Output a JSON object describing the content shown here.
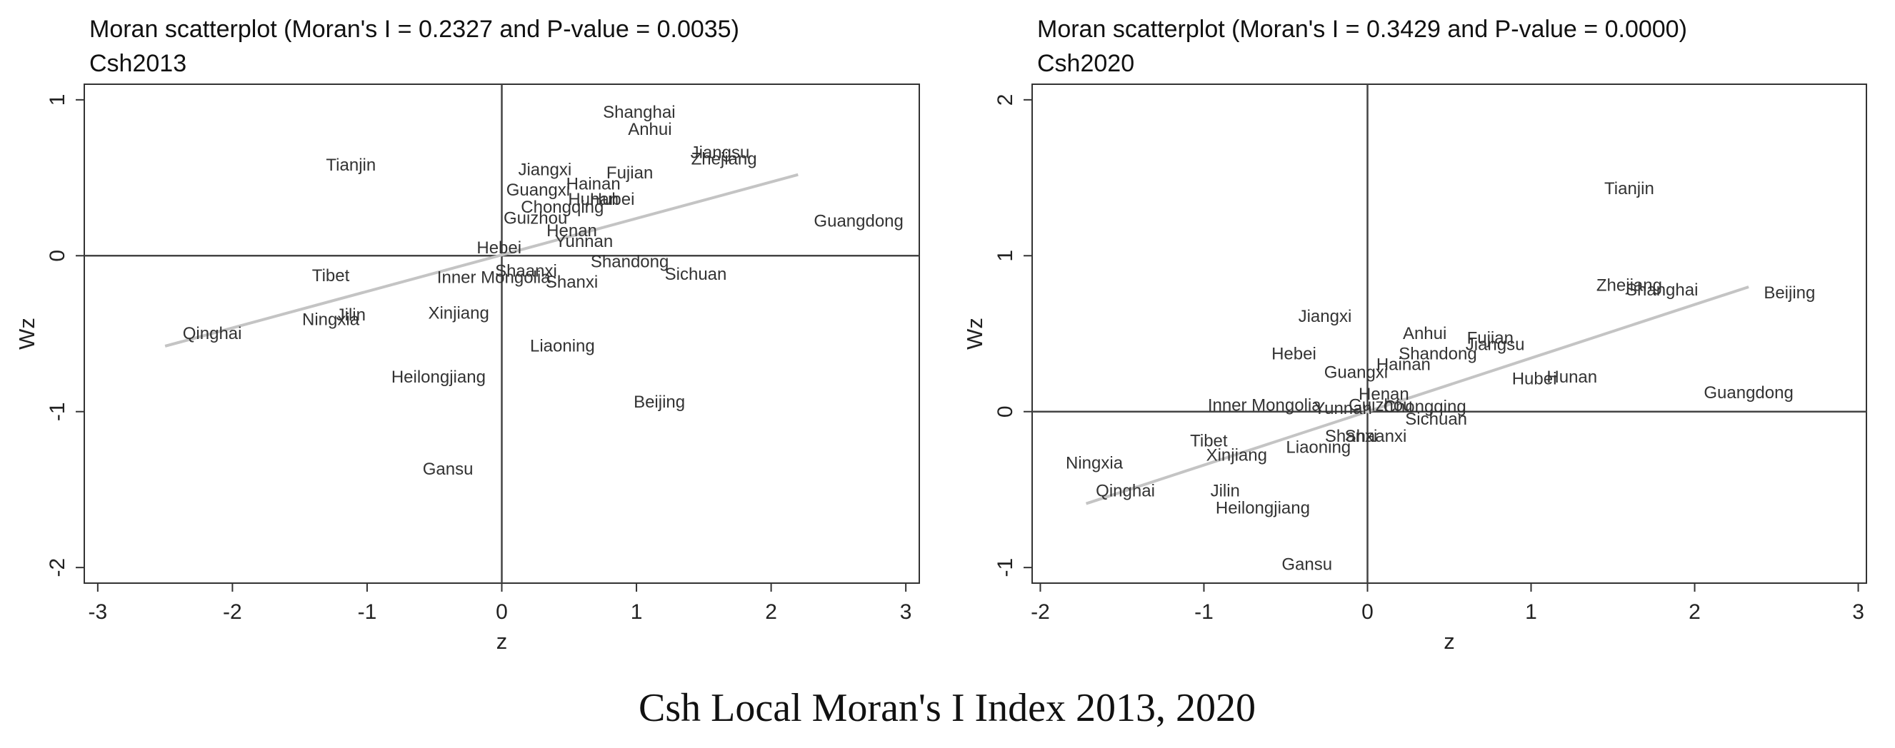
{
  "caption": "Csh Local Moran's I Index 2013, 2020",
  "chart_data": [
    {
      "type": "scatter",
      "title": "Moran scatterplot (Moran's I = 0.2327 and P-value = 0.0035)",
      "subtitle": "Csh2013",
      "xlabel": "z",
      "ylabel": "Wz",
      "xlim": [
        -3.1,
        3.1
      ],
      "ylim": [
        -2.1,
        1.1
      ],
      "xticks": [
        "-3",
        "-2",
        "-1",
        "0",
        "1",
        "2",
        "3"
      ],
      "yticks": [
        "-2",
        "-1",
        "0",
        "1"
      ],
      "fit_line": {
        "x": [
          -2.5,
          2.2
        ],
        "y": [
          -0.58,
          0.52
        ],
        "slope": 0.2327
      },
      "points": [
        {
          "label": "Shanghai",
          "x": 1.02,
          "y": 0.92
        },
        {
          "label": "Anhui",
          "x": 1.1,
          "y": 0.81
        },
        {
          "label": "Jiangsu",
          "x": 1.62,
          "y": 0.66
        },
        {
          "label": "Zhejiang",
          "x": 1.65,
          "y": 0.62
        },
        {
          "label": "Tianjin",
          "x": -1.12,
          "y": 0.58
        },
        {
          "label": "Jiangxi",
          "x": 0.32,
          "y": 0.55
        },
        {
          "label": "Fujian",
          "x": 0.95,
          "y": 0.53
        },
        {
          "label": "Hainan",
          "x": 0.68,
          "y": 0.46
        },
        {
          "label": "Guangxi",
          "x": 0.27,
          "y": 0.42
        },
        {
          "label": "Hunan",
          "x": 0.68,
          "y": 0.36
        },
        {
          "label": "Hubei",
          "x": 0.82,
          "y": 0.36
        },
        {
          "label": "Chongqing",
          "x": 0.45,
          "y": 0.31
        },
        {
          "label": "Guizhou",
          "x": 0.25,
          "y": 0.24
        },
        {
          "label": "Guangdong",
          "x": 2.65,
          "y": 0.22
        },
        {
          "label": "Henan",
          "x": 0.52,
          "y": 0.16
        },
        {
          "label": "Yunnan",
          "x": 0.61,
          "y": 0.09
        },
        {
          "label": "Hebei",
          "x": -0.02,
          "y": 0.05
        },
        {
          "label": "Shandong",
          "x": 0.95,
          "y": -0.04
        },
        {
          "label": "Shaanxi",
          "x": 0.18,
          "y": -0.1
        },
        {
          "label": "Sichuan",
          "x": 1.44,
          "y": -0.12
        },
        {
          "label": "Tibet",
          "x": -1.27,
          "y": -0.13
        },
        {
          "label": "Inner Mongolia",
          "x": -0.06,
          "y": -0.14
        },
        {
          "label": "Shanxi",
          "x": 0.52,
          "y": -0.17
        },
        {
          "label": "Xinjiang",
          "x": -0.32,
          "y": -0.37
        },
        {
          "label": "Jilin",
          "x": -1.12,
          "y": -0.38
        },
        {
          "label": "Ningxia",
          "x": -1.27,
          "y": -0.41
        },
        {
          "label": "Qinghai",
          "x": -2.15,
          "y": -0.5
        },
        {
          "label": "Liaoning",
          "x": 0.45,
          "y": -0.58
        },
        {
          "label": "Heilongjiang",
          "x": -0.47,
          "y": -0.78
        },
        {
          "label": "Beijing",
          "x": 1.17,
          "y": -0.94
        },
        {
          "label": "Gansu",
          "x": -0.4,
          "y": -1.37
        }
      ]
    },
    {
      "type": "scatter",
      "title": "Moran scatterplot (Moran's I = 0.3429 and P-value = 0.0000)",
      "subtitle": "Csh2020",
      "xlabel": "z",
      "ylabel": "Wz",
      "xlim": [
        -2.05,
        3.05
      ],
      "ylim": [
        -1.1,
        2.1
      ],
      "xticks": [
        "-2",
        "-1",
        "0",
        "1",
        "2",
        "3"
      ],
      "yticks": [
        "-1",
        "0",
        "1",
        "2"
      ],
      "fit_line": {
        "x": [
          -1.72,
          2.33
        ],
        "y": [
          -0.59,
          0.8
        ],
        "slope": 0.3429
      },
      "points": [
        {
          "label": "Tianjin",
          "x": 1.6,
          "y": 1.43
        },
        {
          "label": "Zhejiang",
          "x": 1.6,
          "y": 0.81
        },
        {
          "label": "Shanghai",
          "x": 1.8,
          "y": 0.78
        },
        {
          "label": "Beijing",
          "x": 2.58,
          "y": 0.76
        },
        {
          "label": "Jiangxi",
          "x": -0.26,
          "y": 0.61
        },
        {
          "label": "Anhui",
          "x": 0.35,
          "y": 0.5
        },
        {
          "label": "Fujian",
          "x": 0.75,
          "y": 0.47
        },
        {
          "label": "Jiangsu",
          "x": 0.78,
          "y": 0.43
        },
        {
          "label": "Shandong",
          "x": 0.43,
          "y": 0.37
        },
        {
          "label": "Hebei",
          "x": -0.45,
          "y": 0.37
        },
        {
          "label": "Hainan",
          "x": 0.22,
          "y": 0.3
        },
        {
          "label": "Guangxi",
          "x": -0.07,
          "y": 0.25
        },
        {
          "label": "Hubei",
          "x": 1.02,
          "y": 0.21
        },
        {
          "label": "Hunan",
          "x": 1.25,
          "y": 0.22
        },
        {
          "label": "Guangdong",
          "x": 2.33,
          "y": 0.12
        },
        {
          "label": "Henan",
          "x": 0.1,
          "y": 0.11
        },
        {
          "label": "Inner Mongolia",
          "x": -0.63,
          "y": 0.04
        },
        {
          "label": "Guizhou",
          "x": 0.08,
          "y": 0.04
        },
        {
          "label": "Chongqing",
          "x": 0.35,
          "y": 0.03
        },
        {
          "label": "Yunnan",
          "x": -0.15,
          "y": 0.02
        },
        {
          "label": "Sichuan",
          "x": 0.42,
          "y": -0.05
        },
        {
          "label": "Shanxi",
          "x": -0.1,
          "y": -0.16
        },
        {
          "label": "Shaanxi",
          "x": 0.05,
          "y": -0.16
        },
        {
          "label": "Tibet",
          "x": -0.97,
          "y": -0.19
        },
        {
          "label": "Liaoning",
          "x": -0.3,
          "y": -0.23
        },
        {
          "label": "Xinjiang",
          "x": -0.8,
          "y": -0.28
        },
        {
          "label": "Ningxia",
          "x": -1.67,
          "y": -0.33
        },
        {
          "label": "Qinghai",
          "x": -1.48,
          "y": -0.51
        },
        {
          "label": "Jilin",
          "x": -0.87,
          "y": -0.51
        },
        {
          "label": "Heilongjiang",
          "x": -0.64,
          "y": -0.62
        },
        {
          "label": "Gansu",
          "x": -0.37,
          "y": -0.98
        }
      ]
    }
  ]
}
